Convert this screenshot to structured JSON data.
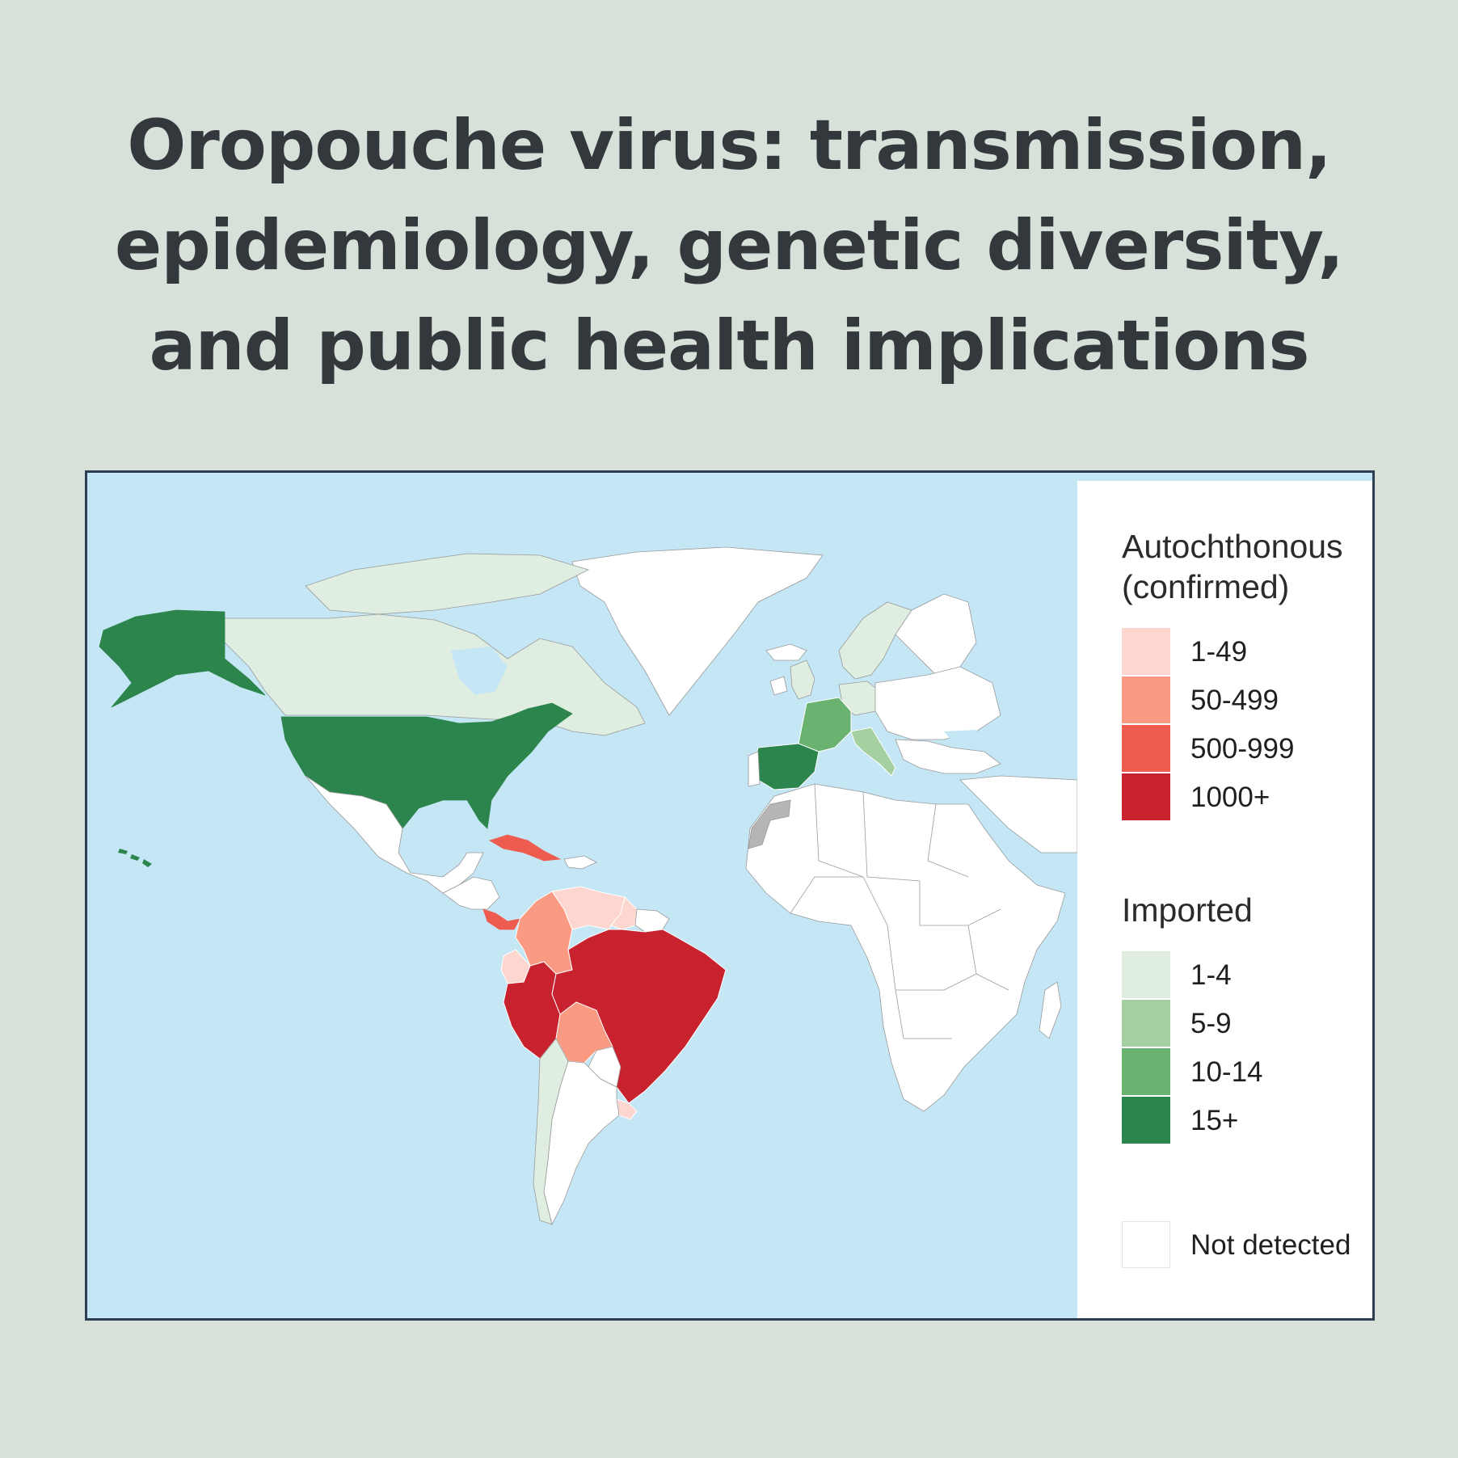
{
  "title": {
    "line1": "Oropouche virus: transmission,",
    "line2": "epidemiology, genetic diversity,",
    "line3": "and public health implications"
  },
  "legend": {
    "autochthonous": {
      "heading_line1": "Autochthonous",
      "heading_line2": "(confirmed)",
      "items": [
        {
          "label": "1-49",
          "color": "#fdd6d0"
        },
        {
          "label": "50-499",
          "color": "#fb9a82"
        },
        {
          "label": "500-999",
          "color": "#ee5b4f"
        },
        {
          "label": "1000+",
          "color": "#c9222f"
        }
      ]
    },
    "imported": {
      "heading": "Imported",
      "items": [
        {
          "label": "1-4",
          "color": "#dfeee0"
        },
        {
          "label": "5-9",
          "color": "#a5d0a2"
        },
        {
          "label": "10-14",
          "color": "#69b26f"
        },
        {
          "label": "15+",
          "color": "#2c854c"
        }
      ]
    },
    "not_detected": {
      "label": "Not detected",
      "color": "#ffffff"
    }
  },
  "colors": {
    "ocean": "#c5e6f4",
    "not_detected_land": "#ffffff",
    "no_data": "#b5b5b5",
    "frame_border": "#2c3e50",
    "background": "#d7e1da"
  },
  "map": {
    "countries": [
      {
        "name": "Alaska (United States)",
        "category": "imported",
        "bin": "15+"
      },
      {
        "name": "United States",
        "category": "imported",
        "bin": "15+"
      },
      {
        "name": "Canada",
        "category": "imported",
        "bin": "1-4"
      },
      {
        "name": "Spain",
        "category": "imported",
        "bin": "15+"
      },
      {
        "name": "France",
        "category": "imported",
        "bin": "10-14"
      },
      {
        "name": "Italy",
        "category": "imported",
        "bin": "5-9"
      },
      {
        "name": "Germany",
        "category": "imported",
        "bin": "1-4"
      },
      {
        "name": "United Kingdom",
        "category": "imported",
        "bin": "1-4"
      },
      {
        "name": "Sweden",
        "category": "imported",
        "bin": "1-4"
      },
      {
        "name": "Chile",
        "category": "imported",
        "bin": "1-4"
      },
      {
        "name": "Brazil",
        "category": "autochthonous",
        "bin": "1000+"
      },
      {
        "name": "Peru",
        "category": "autochthonous",
        "bin": "1000+"
      },
      {
        "name": "Cuba",
        "category": "autochthonous",
        "bin": "500-999"
      },
      {
        "name": "Panama",
        "category": "autochthonous",
        "bin": "500-999"
      },
      {
        "name": "Colombia",
        "category": "autochthonous",
        "bin": "50-499"
      },
      {
        "name": "Bolivia",
        "category": "autochthonous",
        "bin": "50-499"
      },
      {
        "name": "Venezuela",
        "category": "autochthonous",
        "bin": "1-49"
      },
      {
        "name": "Ecuador",
        "category": "autochthonous",
        "bin": "1-49"
      },
      {
        "name": "Guyana",
        "category": "autochthonous",
        "bin": "1-49"
      },
      {
        "name": "Uruguay",
        "category": "autochthonous",
        "bin": "1-49"
      },
      {
        "name": "Western Sahara",
        "category": "no_data",
        "bin": ""
      }
    ]
  }
}
